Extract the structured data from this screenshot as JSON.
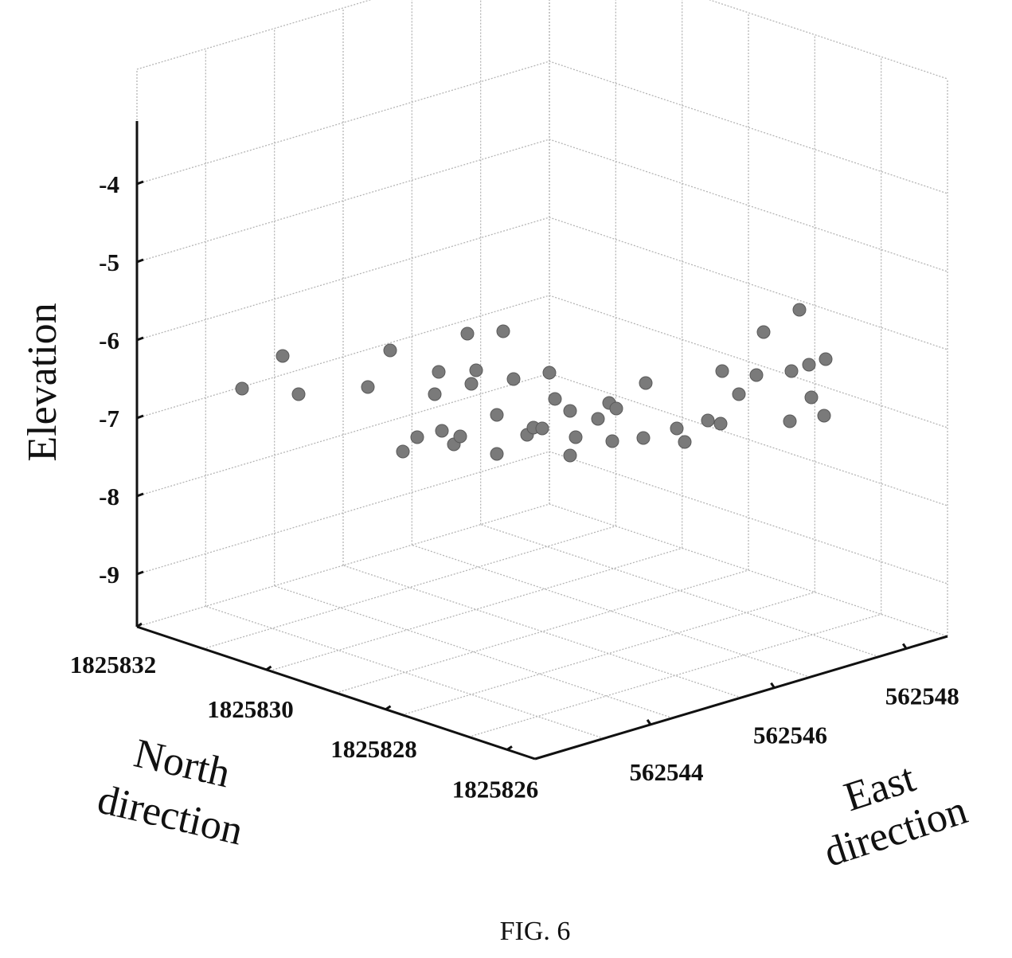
{
  "chart_data": {
    "type": "scatter",
    "dimensions": 3,
    "zlabel": "Elevation",
    "ylabel_lines": [
      "North",
      "direction"
    ],
    "xlabel_lines": [
      "East",
      "direction"
    ],
    "z_ticks": [
      "-4",
      "-5",
      "-6",
      "-7",
      "-8",
      "-9"
    ],
    "z_tick_values": [
      -4,
      -5,
      -6,
      -7,
      -8,
      -9
    ],
    "y_ticks": [
      "1825832",
      "1825830",
      "1825828",
      "1825826"
    ],
    "x_ticks": [
      "562544",
      "562546",
      "562548"
    ],
    "grid": true,
    "points_2d_projection_note": "",
    "points": [
      {
        "u": 304,
        "v": 488
      },
      {
        "u": 355,
        "v": 447
      },
      {
        "u": 375,
        "v": 495
      },
      {
        "u": 462,
        "v": 486
      },
      {
        "u": 490,
        "v": 440
      },
      {
        "u": 506,
        "v": 567
      },
      {
        "u": 524,
        "v": 549
      },
      {
        "u": 546,
        "v": 495
      },
      {
        "u": 551,
        "v": 467
      },
      {
        "u": 555,
        "v": 541
      },
      {
        "u": 570,
        "v": 558
      },
      {
        "u": 578,
        "v": 548
      },
      {
        "u": 587,
        "v": 419
      },
      {
        "u": 592,
        "v": 482
      },
      {
        "u": 598,
        "v": 465
      },
      {
        "u": 624,
        "v": 521
      },
      {
        "u": 624,
        "v": 570
      },
      {
        "u": 632,
        "v": 416
      },
      {
        "u": 645,
        "v": 476
      },
      {
        "u": 662,
        "v": 546
      },
      {
        "u": 670,
        "v": 537
      },
      {
        "u": 681,
        "v": 538
      },
      {
        "u": 690,
        "v": 468
      },
      {
        "u": 697,
        "v": 501
      },
      {
        "u": 716,
        "v": 516
      },
      {
        "u": 716,
        "v": 572
      },
      {
        "u": 723,
        "v": 549
      },
      {
        "u": 751,
        "v": 526
      },
      {
        "u": 765,
        "v": 506
      },
      {
        "u": 774,
        "v": 513
      },
      {
        "u": 769,
        "v": 554
      },
      {
        "u": 808,
        "v": 550
      },
      {
        "u": 811,
        "v": 481
      },
      {
        "u": 850,
        "v": 538
      },
      {
        "u": 860,
        "v": 555
      },
      {
        "u": 889,
        "v": 528
      },
      {
        "u": 905,
        "v": 532
      },
      {
        "u": 907,
        "v": 466
      },
      {
        "u": 928,
        "v": 495
      },
      {
        "u": 950,
        "v": 471
      },
      {
        "u": 959,
        "v": 417
      },
      {
        "u": 992,
        "v": 529
      },
      {
        "u": 994,
        "v": 466
      },
      {
        "u": 1004,
        "v": 389
      },
      {
        "u": 1016,
        "v": 458
      },
      {
        "u": 1019,
        "v": 499
      },
      {
        "u": 1035,
        "v": 522
      },
      {
        "u": 1037,
        "v": 451
      }
    ]
  },
  "caption": "FIG. 6"
}
